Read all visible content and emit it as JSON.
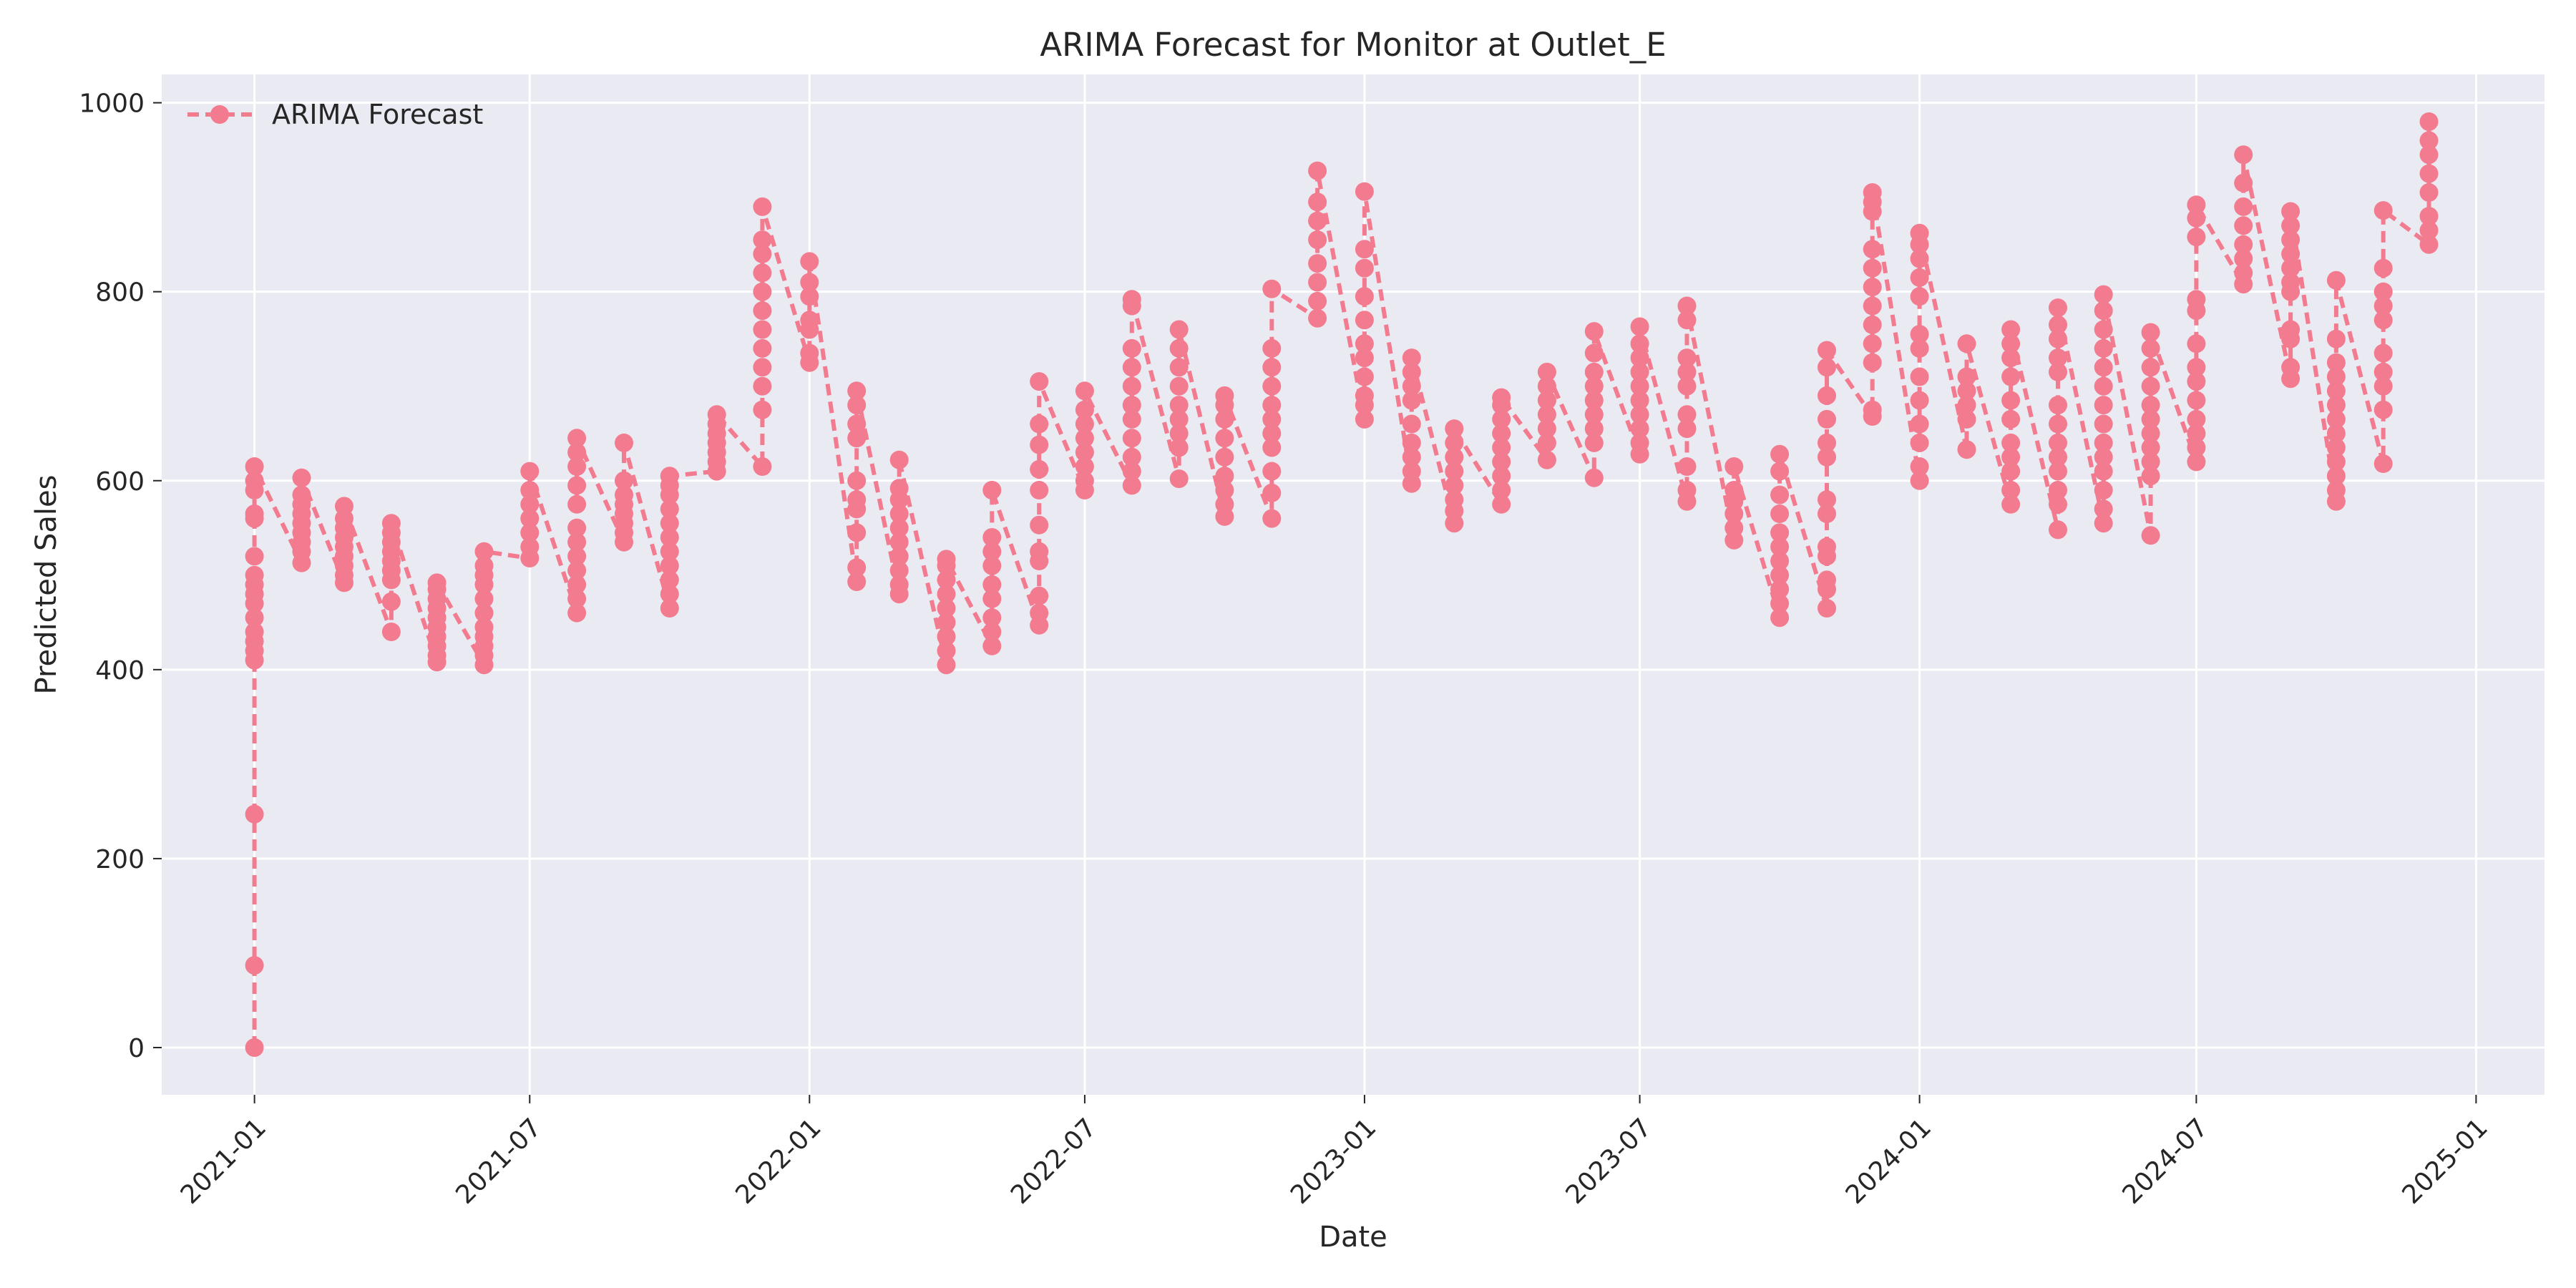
{
  "chart_data": {
    "type": "line",
    "title": "ARIMA Forecast for Monitor at Outlet_E",
    "xlabel": "Date",
    "ylabel": "Predicted Sales",
    "xlim": [
      "2020-11-01",
      "2025-02-15"
    ],
    "ylim": [
      -50,
      1030
    ],
    "x_ticks": [
      "2021-01",
      "2021-07",
      "2022-01",
      "2022-07",
      "2023-01",
      "2023-07",
      "2024-01",
      "2024-07",
      "2025-01"
    ],
    "y_ticks": [
      0,
      200,
      400,
      600,
      800,
      1000
    ],
    "grid": true,
    "legend": "top-left",
    "colors": {
      "series": "#f37b8f",
      "plot_bg": "#eaeaf2",
      "grid": "#ffffff",
      "text": "#262626"
    },
    "series": [
      {
        "name": "ARIMA Forecast",
        "style": "dashed line with circle markers",
        "groups": [
          {
            "date": "2021-01-01",
            "values": [
              0,
              87,
              247,
              410,
              420,
              430,
              440,
              455,
              470,
              480,
              490,
              500,
              520,
              560,
              565,
              590,
              600,
              615
            ]
          },
          {
            "date": "2021-02-01",
            "values": [
              513,
              525,
              535,
              545,
              555,
              565,
              575,
              585,
              603
            ]
          },
          {
            "date": "2021-03-01",
            "values": [
              492,
              500,
              510,
              520,
              530,
              540,
              550,
              560,
              573
            ]
          },
          {
            "date": "2021-04-01",
            "values": [
              440,
              472,
              495,
              505,
              515,
              525,
              535,
              545,
              555
            ]
          },
          {
            "date": "2021-05-01",
            "values": [
              408,
              415,
              425,
              435,
              445,
              455,
              465,
              475,
              485,
              492
            ]
          },
          {
            "date": "2021-06-01",
            "values": [
              405,
              415,
              425,
              435,
              445,
              460,
              475,
              490,
              500,
              510,
              525
            ]
          },
          {
            "date": "2021-07-01",
            "values": [
              518,
              530,
              545,
              560,
              575,
              590,
              610
            ]
          },
          {
            "date": "2021-08-01",
            "values": [
              460,
              475,
              490,
              505,
              520,
              535,
              550,
              575,
              595,
              615,
              630,
              645
            ]
          },
          {
            "date": "2021-09-01",
            "values": [
              535,
              545,
              555,
              565,
              575,
              585,
              600,
              640
            ]
          },
          {
            "date": "2021-10-01",
            "values": [
              465,
              480,
              495,
              510,
              525,
              540,
              555,
              570,
              585,
              595,
              605
            ]
          },
          {
            "date": "2021-11-01",
            "values": [
              610,
              620,
              630,
              640,
              650,
              660,
              670
            ]
          },
          {
            "date": "2021-12-01",
            "values": [
              615,
              675,
              700,
              720,
              740,
              760,
              780,
              800,
              820,
              840,
              855,
              890
            ]
          },
          {
            "date": "2022-01-01",
            "values": [
              725,
              735,
              760,
              770,
              795,
              810,
              832
            ]
          },
          {
            "date": "2022-02-01",
            "values": [
              493,
              508,
              545,
              570,
              580,
              600,
              645,
              660,
              680,
              695
            ]
          },
          {
            "date": "2022-03-01",
            "values": [
              480,
              490,
              505,
              520,
              535,
              550,
              565,
              580,
              592,
              622
            ]
          },
          {
            "date": "2022-04-01",
            "values": [
              405,
              420,
              435,
              450,
              465,
              480,
              495,
              510,
              517
            ]
          },
          {
            "date": "2022-05-01",
            "values": [
              425,
              440,
              455,
              475,
              490,
              510,
              525,
              540,
              590
            ]
          },
          {
            "date": "2022-06-01",
            "values": [
              447,
              460,
              478,
              515,
              525,
              553,
              590,
              612,
              638,
              660,
              705
            ]
          },
          {
            "date": "2022-07-01",
            "values": [
              590,
              600,
              615,
              630,
              645,
              660,
              675,
              695
            ]
          },
          {
            "date": "2022-08-01",
            "values": [
              595,
              610,
              625,
              645,
              665,
              680,
              700,
              720,
              740,
              785,
              792
            ]
          },
          {
            "date": "2022-09-01",
            "values": [
              602,
              635,
              650,
              665,
              680,
              700,
              720,
              740,
              760
            ]
          },
          {
            "date": "2022-10-01",
            "values": [
              562,
              575,
              590,
              605,
              625,
              645,
              665,
              680,
              690
            ]
          },
          {
            "date": "2022-11-01",
            "values": [
              560,
              587,
              610,
              635,
              650,
              665,
              680,
              700,
              720,
              740,
              803
            ]
          },
          {
            "date": "2022-12-01",
            "values": [
              772,
              790,
              810,
              830,
              855,
              875,
              895,
              928
            ]
          },
          {
            "date": "2023-01-01",
            "values": [
              665,
              680,
              690,
              710,
              730,
              745,
              770,
              795,
              825,
              845,
              906
            ]
          },
          {
            "date": "2023-02-01",
            "values": [
              597,
              610,
              625,
              640,
              660,
              685,
              700,
              715,
              730
            ]
          },
          {
            "date": "2023-03-01",
            "values": [
              555,
              568,
              580,
              595,
              610,
              625,
              640,
              655
            ]
          },
          {
            "date": "2023-04-01",
            "values": [
              575,
              590,
              605,
              620,
              635,
              650,
              665,
              680,
              688
            ]
          },
          {
            "date": "2023-05-01",
            "values": [
              622,
              640,
              655,
              670,
              685,
              700,
              715
            ]
          },
          {
            "date": "2023-06-01",
            "values": [
              603,
              640,
              655,
              670,
              685,
              700,
              715,
              735,
              758
            ]
          },
          {
            "date": "2023-07-01",
            "values": [
              628,
              640,
              655,
              670,
              685,
              700,
              715,
              730,
              745,
              763
            ]
          },
          {
            "date": "2023-08-01",
            "values": [
              578,
              590,
              615,
              655,
              670,
              700,
              715,
              730,
              770,
              785
            ]
          },
          {
            "date": "2023-09-01",
            "values": [
              537,
              550,
              565,
              578,
              590,
              615
            ]
          },
          {
            "date": "2023-10-01",
            "values": [
              455,
              470,
              485,
              500,
              515,
              530,
              545,
              565,
              585,
              610,
              628
            ]
          },
          {
            "date": "2023-11-01",
            "values": [
              465,
              485,
              495,
              520,
              530,
              565,
              580,
              625,
              640,
              665,
              690,
              720,
              738
            ]
          },
          {
            "date": "2023-12-01",
            "values": [
              668,
              675,
              725,
              745,
              765,
              785,
              805,
              825,
              845,
              885,
              895,
              905
            ]
          },
          {
            "date": "2024-01-01",
            "values": [
              600,
              615,
              640,
              660,
              685,
              710,
              740,
              755,
              795,
              815,
              835,
              850,
              862
            ]
          },
          {
            "date": "2024-02-01",
            "values": [
              633,
              665,
              680,
              695,
              710,
              745
            ]
          },
          {
            "date": "2024-03-01",
            "values": [
              575,
              590,
              610,
              625,
              640,
              665,
              685,
              710,
              730,
              745,
              760
            ]
          },
          {
            "date": "2024-04-01",
            "values": [
              548,
              575,
              590,
              610,
              625,
              640,
              660,
              680,
              715,
              730,
              750,
              765,
              783
            ]
          },
          {
            "date": "2024-05-01",
            "values": [
              555,
              570,
              590,
              610,
              625,
              640,
              660,
              680,
              700,
              720,
              740,
              760,
              780,
              797
            ]
          },
          {
            "date": "2024-06-01",
            "values": [
              542,
              605,
              620,
              635,
              650,
              665,
              680,
              700,
              720,
              740,
              757
            ]
          },
          {
            "date": "2024-07-01",
            "values": [
              620,
              635,
              650,
              665,
              685,
              705,
              720,
              745,
              780,
              792,
              858,
              878,
              892
            ]
          },
          {
            "date": "2024-08-01",
            "values": [
              808,
              820,
              835,
              850,
              870,
              890,
              915,
              945
            ]
          },
          {
            "date": "2024-09-01",
            "values": [
              708,
              720,
              750,
              760,
              800,
              810,
              825,
              840,
              855,
              870,
              885
            ]
          },
          {
            "date": "2024-10-01",
            "values": [
              578,
              590,
              605,
              620,
              635,
              650,
              665,
              680,
              695,
              710,
              725,
              750,
              812
            ]
          },
          {
            "date": "2024-11-01",
            "values": [
              618,
              675,
              700,
              715,
              735,
              770,
              785,
              800,
              825,
              886
            ]
          },
          {
            "date": "2024-12-01",
            "values": [
              850,
              865,
              880,
              905,
              925,
              945,
              960,
              980
            ]
          }
        ]
      }
    ]
  }
}
